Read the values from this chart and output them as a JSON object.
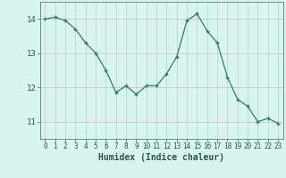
{
  "x": [
    0,
    1,
    2,
    3,
    4,
    5,
    6,
    7,
    8,
    9,
    10,
    11,
    12,
    13,
    14,
    15,
    16,
    17,
    18,
    19,
    20,
    21,
    22,
    23
  ],
  "y": [
    14.0,
    14.05,
    13.95,
    13.7,
    13.3,
    13.0,
    12.5,
    11.85,
    12.05,
    11.8,
    12.05,
    12.05,
    12.4,
    12.9,
    13.95,
    14.15,
    13.65,
    13.3,
    12.3,
    11.65,
    11.45,
    11.0,
    11.1,
    10.95
  ],
  "line_color": "#2e7d6e",
  "marker": "+",
  "bg_color": "#d8f5f0",
  "grid_color": "#c0ddd8",
  "grid_color_major": "#b8cccb",
  "xlabel": "Humidex (Indice chaleur)",
  "ylim": [
    10.5,
    14.5
  ],
  "xlim": [
    -0.5,
    23.5
  ],
  "yticks": [
    11,
    12,
    13,
    14
  ],
  "xticks": [
    0,
    1,
    2,
    3,
    4,
    5,
    6,
    7,
    8,
    9,
    10,
    11,
    12,
    13,
    14,
    15,
    16,
    17,
    18,
    19,
    20,
    21,
    22,
    23
  ],
  "tick_color": "#2e5050",
  "font_color": "#2e5050",
  "spine_color": "#6a9090"
}
